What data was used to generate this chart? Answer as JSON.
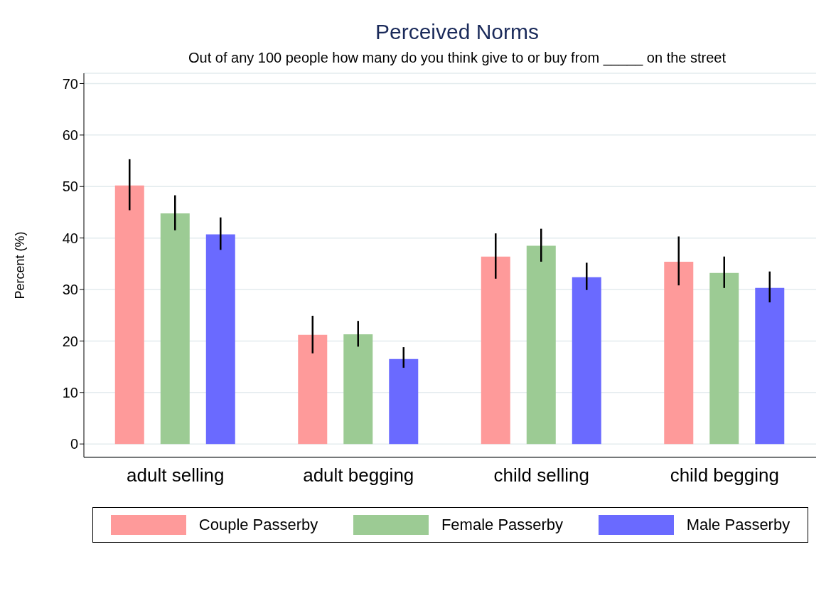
{
  "chart_data": {
    "type": "bar",
    "title": "Perceived Norms",
    "subtitle": "Out of any 100 people how many do you think give to or buy from _____ on the street",
    "ylabel": "Percent (%)",
    "categories": [
      "adult selling",
      "adult begging",
      "child selling",
      "child begging"
    ],
    "series": [
      {
        "name": "Couple Passerby",
        "color": "#fe9a9a",
        "values": [
          50.2,
          21.2,
          36.4,
          35.4
        ],
        "errors": [
          [
            45.4,
            55.3
          ],
          [
            17.6,
            24.9
          ],
          [
            32.1,
            40.9
          ],
          [
            30.8,
            40.3
          ]
        ]
      },
      {
        "name": "Female Passerby",
        "color": "#9ccb94",
        "values": [
          44.8,
          21.3,
          38.5,
          33.2
        ],
        "errors": [
          [
            41.5,
            48.3
          ],
          [
            18.9,
            23.9
          ],
          [
            35.4,
            41.8
          ],
          [
            30.3,
            36.4
          ]
        ]
      },
      {
        "name": "Male Passerby",
        "color": "#6a6aff",
        "values": [
          40.7,
          16.5,
          32.4,
          30.3
        ],
        "errors": [
          [
            37.7,
            44.0
          ],
          [
            14.8,
            18.8
          ],
          [
            29.9,
            35.2
          ],
          [
            27.5,
            33.5
          ]
        ]
      }
    ],
    "ylim": [
      -2.6,
      72
    ],
    "yticks": [
      0,
      10,
      20,
      30,
      40,
      50,
      60,
      70
    ],
    "grid": "y",
    "legend": "bottom"
  }
}
